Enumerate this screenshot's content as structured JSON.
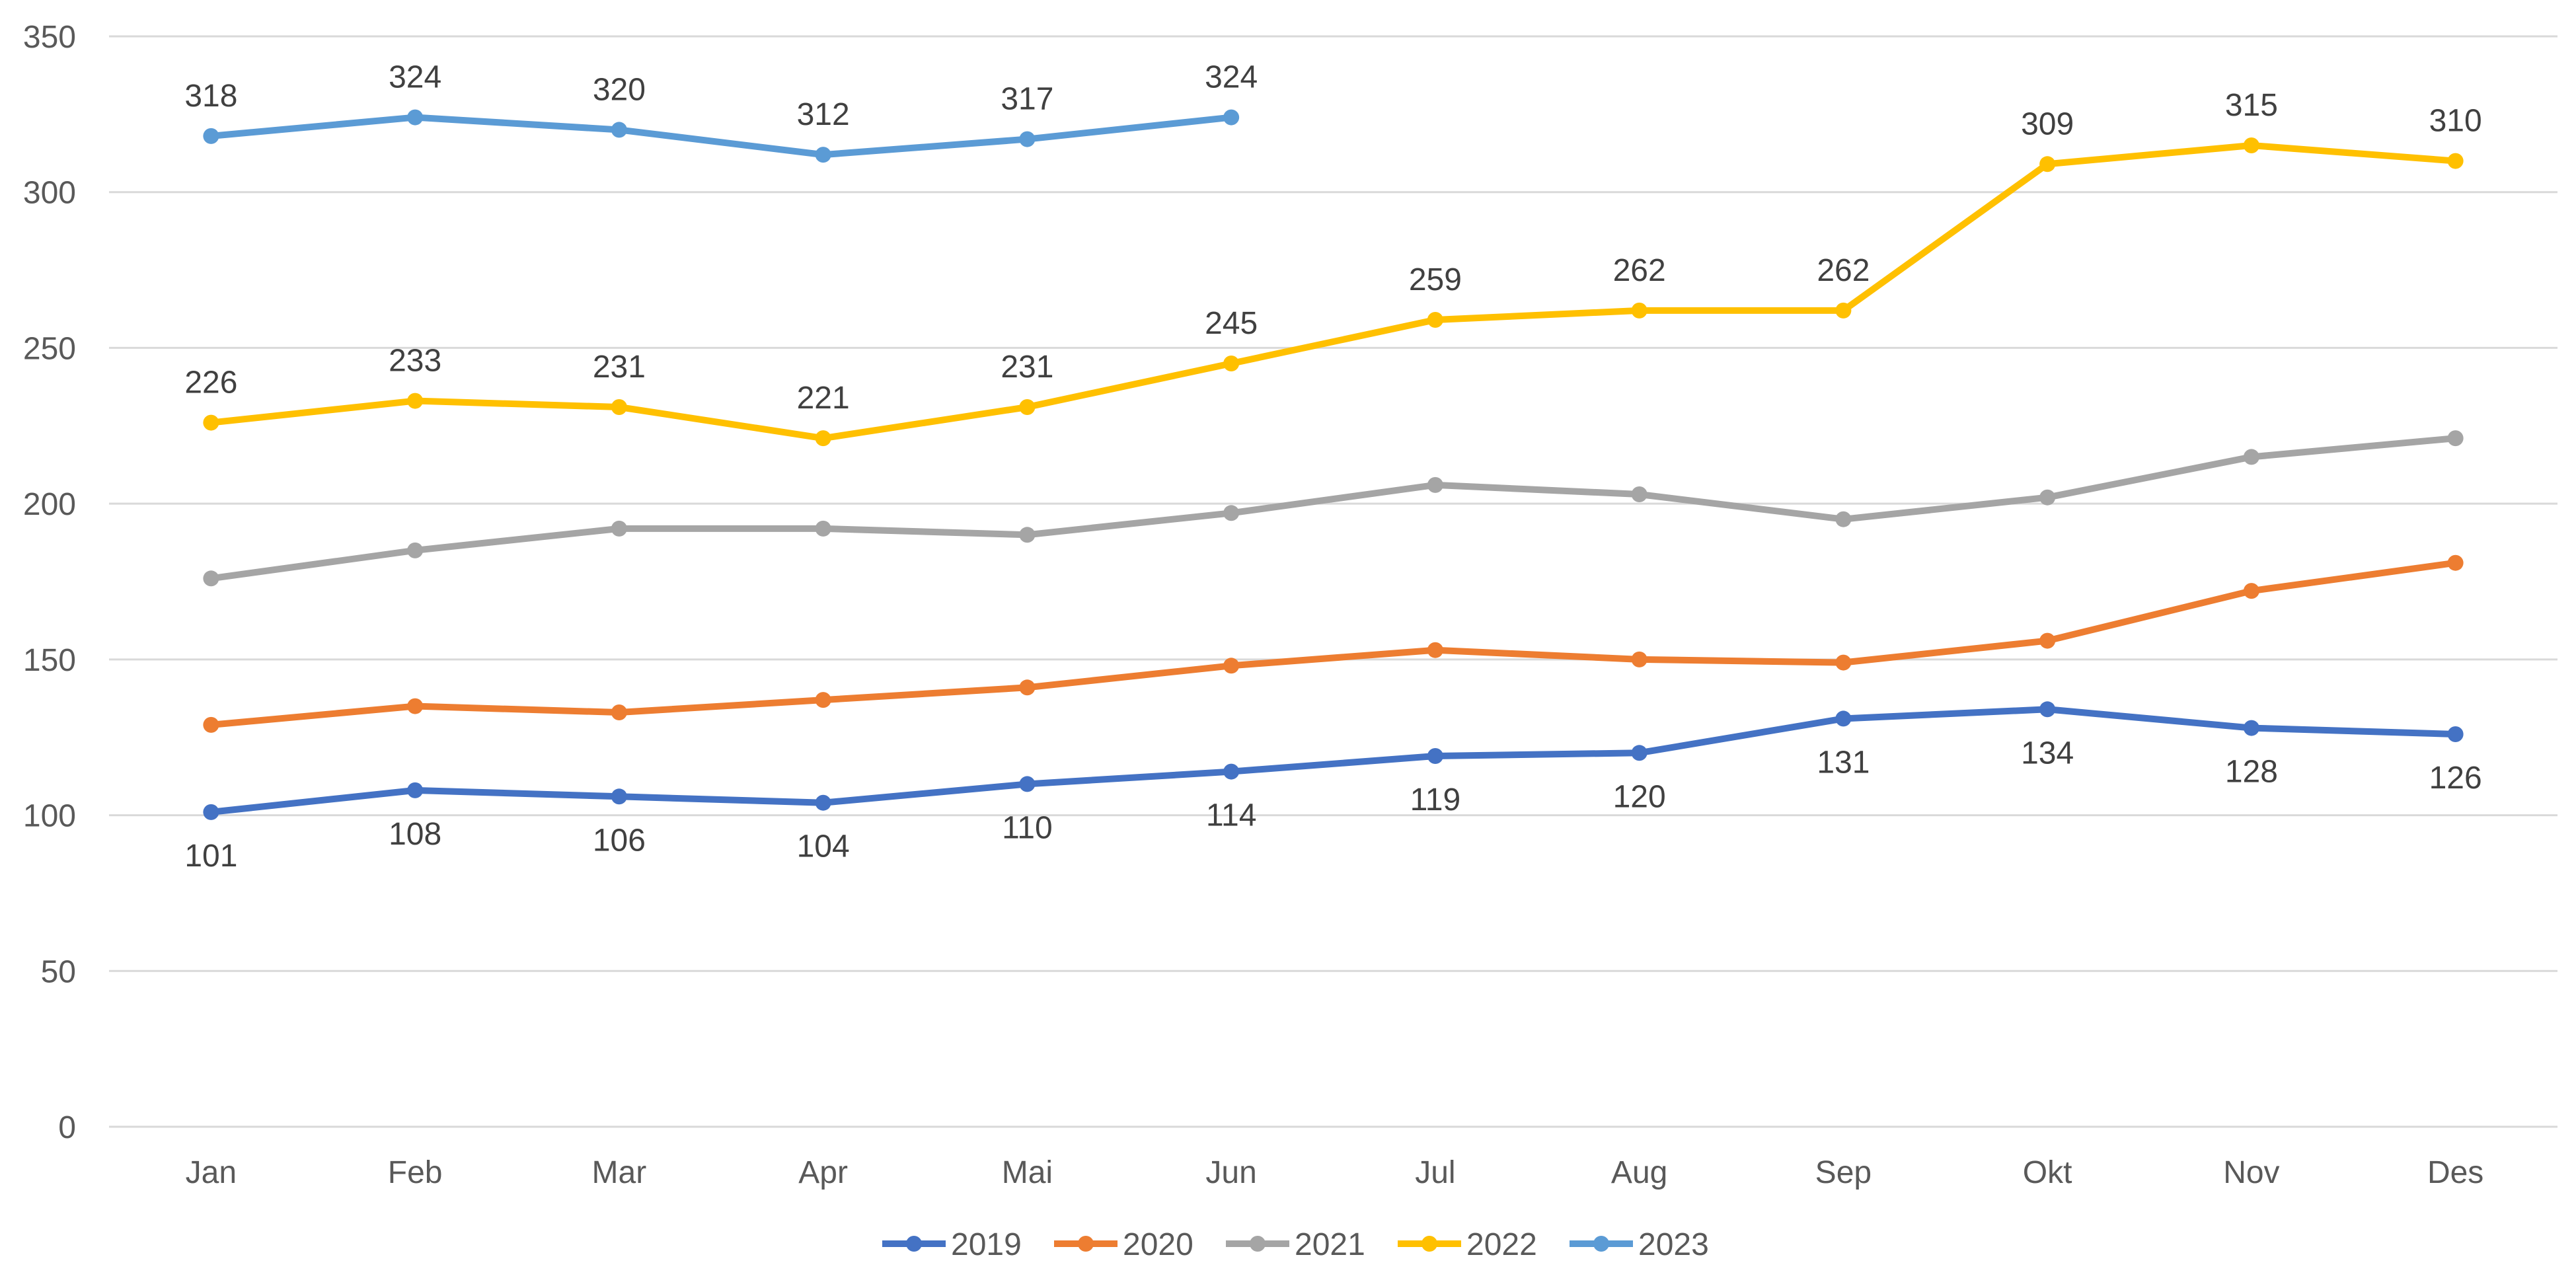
{
  "chart_data": {
    "type": "line",
    "title": "",
    "xlabel": "",
    "ylabel": "",
    "ylim": [
      0,
      350
    ],
    "yticks": [
      0,
      50,
      100,
      150,
      200,
      250,
      300,
      350
    ],
    "grid": true,
    "legend_position": "bottom",
    "categories": [
      "Jan",
      "Feb",
      "Mar",
      "Apr",
      "Mai",
      "Jun",
      "Jul",
      "Aug",
      "Sep",
      "Okt",
      "Nov",
      "Des"
    ],
    "series": [
      {
        "name": "2019",
        "color": "#4472C4",
        "label_position": "below",
        "values": [
          101,
          108,
          106,
          104,
          110,
          114,
          119,
          120,
          131,
          134,
          128,
          126
        ]
      },
      {
        "name": "2020",
        "color": "#ED7D31",
        "label_position": "none",
        "values": [
          129,
          135,
          133,
          137,
          141,
          148,
          153,
          150,
          149,
          156,
          172,
          181
        ]
      },
      {
        "name": "2021",
        "color": "#A5A5A5",
        "label_position": "none",
        "values": [
          176,
          185,
          192,
          192,
          190,
          197,
          206,
          203,
          195,
          202,
          215,
          221
        ]
      },
      {
        "name": "2022",
        "color": "#FFC000",
        "label_position": "above",
        "values": [
          226,
          233,
          231,
          221,
          231,
          245,
          259,
          262,
          262,
          309,
          315,
          310
        ]
      },
      {
        "name": "2023",
        "color": "#5B9BD5",
        "label_position": "above",
        "values": [
          318,
          324,
          320,
          312,
          317,
          324,
          null,
          null,
          null,
          null,
          null,
          null
        ]
      }
    ]
  }
}
